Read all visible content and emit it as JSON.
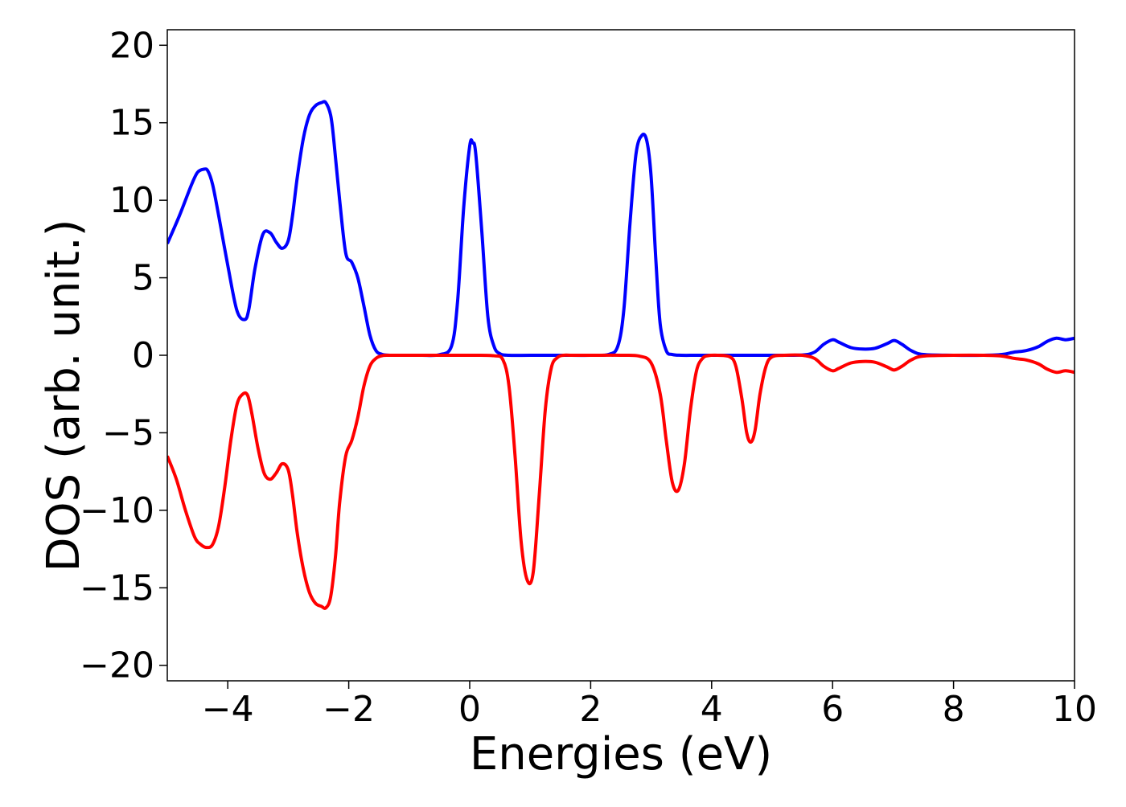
{
  "chart_data": {
    "type": "line",
    "title": "",
    "xlabel": "Energies (eV)",
    "ylabel": "DOS (arb. unit.)",
    "xlim": [
      -5,
      10
    ],
    "ylim": [
      -21,
      21
    ],
    "xticks": [
      -4,
      -2,
      0,
      2,
      4,
      6,
      8,
      10
    ],
    "xtick_labels": [
      "−4",
      "−2",
      "0",
      "2",
      "4",
      "6",
      "8",
      "10"
    ],
    "yticks": [
      20,
      15,
      10,
      5,
      0,
      -5,
      -10,
      -15,
      -20
    ],
    "ytick_labels": [
      "20",
      "15",
      "10",
      "5",
      "0",
      "−5",
      "−10",
      "−15",
      "−20"
    ],
    "grid": false,
    "legend": "none",
    "series": [
      {
        "color": "#0000ff",
        "x": [
          -5.0,
          -4.8,
          -4.6,
          -4.5,
          -4.4,
          -4.33,
          -4.25,
          -4.15,
          -4.0,
          -3.85,
          -3.72,
          -3.65,
          -3.55,
          -3.42,
          -3.3,
          -3.2,
          -3.1,
          -3.0,
          -2.93,
          -2.85,
          -2.75,
          -2.65,
          -2.55,
          -2.45,
          -2.38,
          -2.3,
          -2.25,
          -2.15,
          -2.05,
          -1.95,
          -1.85,
          -1.75,
          -1.65,
          -1.55,
          -1.45,
          -1.35,
          -1.25,
          -1.1,
          -0.8,
          -0.5,
          -0.3,
          -0.2,
          -0.1,
          0.0,
          0.05,
          0.1,
          0.2,
          0.3,
          0.4,
          0.5,
          0.65,
          1.0,
          1.5,
          2.0,
          2.3,
          2.45,
          2.55,
          2.65,
          2.75,
          2.85,
          2.93,
          3.0,
          3.08,
          3.15,
          3.25,
          3.35,
          3.5,
          3.8,
          4.5,
          5.0,
          5.5,
          5.7,
          5.85,
          6.0,
          6.1,
          6.3,
          6.5,
          6.7,
          6.9,
          7.02,
          7.15,
          7.3,
          7.5,
          8.0,
          8.5,
          8.8,
          9.0,
          9.2,
          9.4,
          9.55,
          9.7,
          9.85,
          10.0
        ],
        "y": [
          7.2,
          9.0,
          11.0,
          11.8,
          12.0,
          11.9,
          11.0,
          9.0,
          5.8,
          2.9,
          2.3,
          3.0,
          5.6,
          7.8,
          7.9,
          7.3,
          6.9,
          7.4,
          9.0,
          11.5,
          14.0,
          15.5,
          16.1,
          16.3,
          16.3,
          15.5,
          14.0,
          10.0,
          6.6,
          6.0,
          5.0,
          3.2,
          1.3,
          0.3,
          0.06,
          0.01,
          0.0,
          0.0,
          0.0,
          0.04,
          0.6,
          3.5,
          9.5,
          13.5,
          13.7,
          13.0,
          8.0,
          2.5,
          0.6,
          0.1,
          0.0,
          0.0,
          0.0,
          0.0,
          0.06,
          0.6,
          3.0,
          8.5,
          13.0,
          14.2,
          13.8,
          11.5,
          6.0,
          2.0,
          0.3,
          0.05,
          0.0,
          0.0,
          0.0,
          0.0,
          0.02,
          0.2,
          0.7,
          1.0,
          0.85,
          0.5,
          0.4,
          0.45,
          0.75,
          0.95,
          0.7,
          0.3,
          0.05,
          0.0,
          0.0,
          0.05,
          0.2,
          0.3,
          0.55,
          0.9,
          1.1,
          1.0,
          1.1
        ]
      },
      {
        "color": "#ff0000",
        "x": [
          -5.0,
          -4.85,
          -4.7,
          -4.55,
          -4.45,
          -4.35,
          -4.25,
          -4.15,
          -4.05,
          -3.95,
          -3.85,
          -3.75,
          -3.67,
          -3.6,
          -3.5,
          -3.4,
          -3.3,
          -3.2,
          -3.1,
          -3.0,
          -2.93,
          -2.85,
          -2.75,
          -2.65,
          -2.55,
          -2.45,
          -2.38,
          -2.3,
          -2.22,
          -2.15,
          -2.05,
          -1.95,
          -1.85,
          -1.75,
          -1.65,
          -1.55,
          -1.45,
          -1.35,
          -1.25,
          -1.1,
          -0.5,
          0.0,
          0.4,
          0.55,
          0.65,
          0.75,
          0.85,
          0.95,
          1.05,
          1.15,
          1.25,
          1.35,
          1.45,
          1.55,
          1.7,
          2.0,
          2.5,
          2.8,
          3.0,
          3.15,
          3.25,
          3.35,
          3.45,
          3.55,
          3.65,
          3.75,
          3.85,
          3.95,
          4.1,
          4.3,
          4.4,
          4.5,
          4.58,
          4.65,
          4.72,
          4.8,
          4.9,
          5.0,
          5.2,
          5.5,
          5.7,
          5.85,
          6.0,
          6.1,
          6.3,
          6.5,
          6.7,
          6.9,
          7.02,
          7.15,
          7.3,
          7.5,
          8.0,
          8.5,
          8.8,
          9.0,
          9.2,
          9.4,
          9.55,
          9.7,
          9.85,
          10.0
        ],
        "y": [
          -6.5,
          -8.0,
          -10.0,
          -11.7,
          -12.2,
          -12.4,
          -12.2,
          -11.0,
          -8.5,
          -5.5,
          -3.2,
          -2.5,
          -2.6,
          -3.8,
          -6.0,
          -7.6,
          -8.0,
          -7.6,
          -7.0,
          -7.4,
          -9.0,
          -11.5,
          -13.8,
          -15.3,
          -16.0,
          -16.2,
          -16.3,
          -15.6,
          -13.0,
          -9.5,
          -6.5,
          -5.5,
          -4.0,
          -2.0,
          -0.7,
          -0.2,
          -0.03,
          0.0,
          0.0,
          0.0,
          0.0,
          0.0,
          -0.03,
          -0.3,
          -2.0,
          -6.5,
          -12.0,
          -14.5,
          -14.0,
          -9.0,
          -3.5,
          -0.8,
          -0.15,
          0.0,
          0.0,
          0.0,
          0.0,
          -0.05,
          -0.5,
          -2.5,
          -5.5,
          -8.2,
          -8.7,
          -7.0,
          -3.5,
          -1.0,
          -0.2,
          -0.02,
          0.0,
          -0.1,
          -0.7,
          -2.8,
          -5.0,
          -5.6,
          -4.8,
          -2.5,
          -0.7,
          -0.1,
          0.0,
          0.0,
          -0.2,
          -0.7,
          -1.0,
          -0.85,
          -0.5,
          -0.4,
          -0.45,
          -0.75,
          -0.95,
          -0.7,
          -0.3,
          -0.05,
          0.0,
          0.0,
          -0.05,
          -0.2,
          -0.3,
          -0.55,
          -0.9,
          -1.1,
          -1.0,
          -1.1
        ]
      }
    ]
  }
}
